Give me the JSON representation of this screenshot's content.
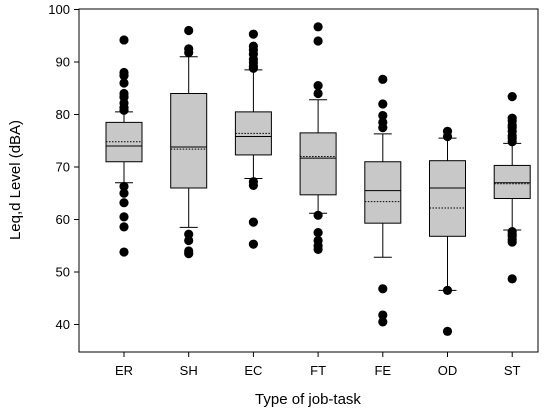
{
  "chart_data": {
    "type": "box",
    "xlabel": "Type of job-task",
    "ylabel": "Leq,d Level (dBA)",
    "ylim": [
      35,
      100
    ],
    "yticks": [
      40,
      50,
      60,
      70,
      80,
      90,
      100
    ],
    "grid": false,
    "legend": "none",
    "colors": {
      "box_fill": "#c8c8c8",
      "outline": "#000000",
      "outlier": "#000000"
    },
    "line_styles": {
      "median": "solid",
      "mean": "dotted"
    },
    "categories": [
      "ER",
      "SH",
      "EC",
      "FT",
      "FE",
      "OD",
      "ST"
    ],
    "boxes": [
      {
        "category": "ER",
        "whisker_low": 67.0,
        "q1": 71.0,
        "median": 74.0,
        "mean": 74.8,
        "q3": 78.5,
        "whisker_high": 80.5,
        "outliers": [
          53.8,
          58.6,
          60.5,
          63.2,
          65.0,
          66.3,
          80.8,
          81.3,
          82.2,
          83.3,
          84.0,
          86.0,
          87.4,
          88.0,
          94.2
        ]
      },
      {
        "category": "SH",
        "whisker_low": 58.5,
        "q1": 66.0,
        "median": 73.8,
        "mean": 73.4,
        "q3": 84.0,
        "whisker_high": 91.0,
        "outliers": [
          53.5,
          54.0,
          56.0,
          57.2,
          91.8,
          92.5,
          96.0
        ]
      },
      {
        "category": "EC",
        "whisker_low": 67.8,
        "q1": 72.3,
        "median": 75.8,
        "mean": 76.4,
        "q3": 80.5,
        "whisker_high": 88.5,
        "outliers": [
          55.3,
          59.5,
          66.5,
          67.2,
          88.8,
          89.2,
          89.9,
          90.5,
          91.5,
          92.3,
          93.0,
          95.3
        ]
      },
      {
        "category": "FT",
        "whisker_low": 61.2,
        "q1": 64.7,
        "median": 71.7,
        "mean": 72.0,
        "q3": 76.5,
        "whisker_high": 82.8,
        "outliers": [
          54.3,
          55.0,
          56.0,
          57.5,
          60.8,
          84.0,
          85.5,
          94.0,
          96.7
        ]
      },
      {
        "category": "FE",
        "whisker_low": 52.8,
        "q1": 59.3,
        "median": 65.5,
        "mean": 63.4,
        "q3": 71.0,
        "whisker_high": 76.3,
        "outliers": [
          40.5,
          41.8,
          46.8,
          77.5,
          78.5,
          79.8,
          82.0,
          86.7
        ]
      },
      {
        "category": "OD",
        "whisker_low": 46.5,
        "q1": 56.8,
        "median": 66.0,
        "mean": 62.2,
        "q3": 71.2,
        "whisker_high": 75.5,
        "outliers": [
          38.7,
          46.5,
          75.8,
          76.8
        ]
      },
      {
        "category": "ST",
        "whisker_low": 58.0,
        "q1": 64.0,
        "median": 67.0,
        "mean": 66.8,
        "q3": 70.3,
        "whisker_high": 74.5,
        "outliers": [
          48.7,
          55.7,
          56.2,
          56.8,
          57.2,
          57.7,
          74.8,
          75.5,
          76.0,
          76.8,
          77.5,
          78.0,
          78.8,
          79.3,
          83.4
        ]
      }
    ]
  }
}
